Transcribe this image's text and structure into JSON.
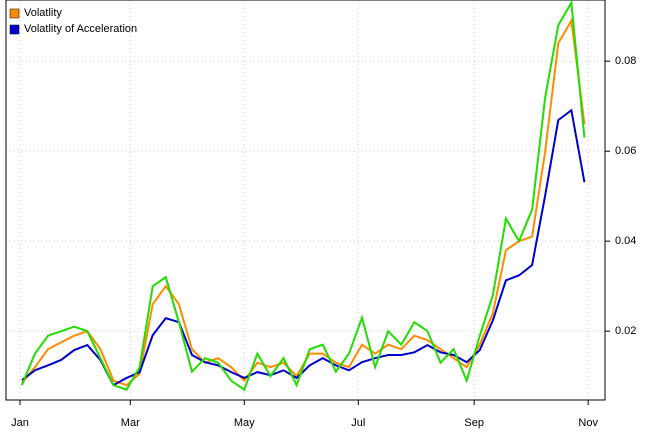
{
  "chart_data": {
    "type": "line",
    "x": [
      1,
      8,
      15,
      22,
      29,
      36,
      43,
      50,
      57,
      64,
      71,
      78,
      85,
      92,
      99,
      106,
      113,
      120,
      127,
      134,
      141,
      148,
      155,
      162,
      169,
      176,
      183,
      190,
      197,
      204,
      211,
      218,
      225,
      232,
      239,
      246,
      253,
      260,
      267,
      274,
      281,
      288,
      295,
      302
    ],
    "series": [
      {
        "name": "Volatlity",
        "color": "#ff8c00",
        "values": [
          0.0085,
          0.012,
          0.016,
          0.0175,
          0.019,
          0.02,
          0.016,
          0.009,
          0.008,
          0.0105,
          0.026,
          0.03,
          0.026,
          0.016,
          0.013,
          0.014,
          0.012,
          0.009,
          0.013,
          0.012,
          0.013,
          0.01,
          0.015,
          0.015,
          0.013,
          0.012,
          0.017,
          0.015,
          0.017,
          0.016,
          0.019,
          0.018,
          0.016,
          0.014,
          0.012,
          0.017,
          0.024,
          0.038,
          0.04,
          0.041,
          0.06,
          0.084,
          0.089,
          0.066
        ]
      },
      {
        "name": "Volatlity of Acceleration",
        "color": "#0000cd",
        "values": [
          0.0091,
          0.0113,
          0.0124,
          0.0136,
          0.0158,
          0.0169,
          0.0136,
          0.008,
          0.0096,
          0.0109,
          0.0191,
          0.0229,
          0.022,
          0.0147,
          0.0131,
          0.0124,
          0.0109,
          0.0096,
          0.0109,
          0.0102,
          0.0113,
          0.0096,
          0.0124,
          0.014,
          0.0124,
          0.0113,
          0.0131,
          0.014,
          0.0147,
          0.0147,
          0.0153,
          0.0169,
          0.0153,
          0.0147,
          0.0131,
          0.0158,
          0.0224,
          0.0313,
          0.0324,
          0.0347,
          0.0502,
          0.0669,
          0.0691,
          0.0531
        ]
      },
      {
        "color": "#22dd00",
        "values": [
          0.008,
          0.015,
          0.019,
          0.02,
          0.021,
          0.02,
          0.014,
          0.008,
          0.007,
          0.012,
          0.03,
          0.032,
          0.022,
          0.011,
          0.014,
          0.013,
          0.009,
          0.007,
          0.015,
          0.01,
          0.014,
          0.008,
          0.016,
          0.017,
          0.011,
          0.015,
          0.023,
          0.012,
          0.02,
          0.017,
          0.022,
          0.02,
          0.013,
          0.016,
          0.009,
          0.019,
          0.028,
          0.045,
          0.04,
          0.047,
          0.072,
          0.088,
          0.093,
          0.063
        ]
      }
    ],
    "xlim": [
      -7.5,
      313
    ],
    "xticks": [
      {
        "value": 0,
        "label": "Jan"
      },
      {
        "value": 59,
        "label": "Mar"
      },
      {
        "value": 120,
        "label": "May"
      },
      {
        "value": 181,
        "label": "Jul"
      },
      {
        "value": 243,
        "label": "Sep"
      },
      {
        "value": 304,
        "label": "Nov"
      }
    ],
    "ylim": [
      0.0047,
      0.0936
    ],
    "yticks": [
      {
        "value": 0.02,
        "label": "0.02"
      },
      {
        "value": 0.04,
        "label": "0.04"
      },
      {
        "value": 0.06,
        "label": "0.06"
      },
      {
        "value": 0.08,
        "label": "0.08"
      }
    ],
    "grid": true,
    "legend": "top-left"
  }
}
